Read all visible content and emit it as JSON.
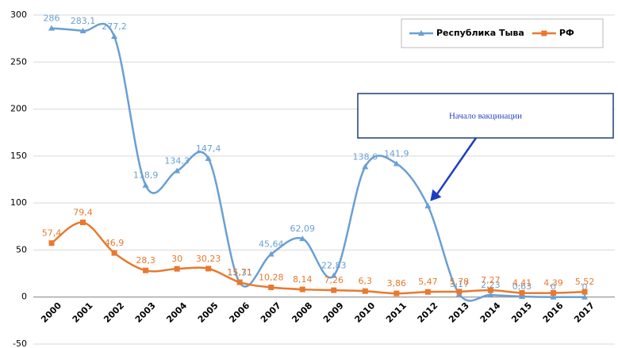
{
  "chart_data": {
    "type": "line",
    "categories": [
      "2000",
      "2001",
      "2002",
      "2003",
      "2004",
      "2005",
      "2006",
      "2007",
      "2008",
      "2009",
      "2010",
      "2011",
      "2012",
      "2013",
      "2014",
      "2015",
      "2016",
      "2017"
    ],
    "series": [
      {
        "name": "Республика Тыва",
        "color": "#6a9fd4",
        "marker": "triangle",
        "values": [
          286,
          283.1,
          277.2,
          118.9,
          134.3,
          147.4,
          15.31,
          45.64,
          62.09,
          22.83,
          138.6,
          141.9,
          97,
          3.17,
          2.23,
          0.63,
          0,
          0
        ],
        "value_labels": [
          "286",
          "283,1",
          "277,2",
          "118,9",
          "134,3",
          "147,4",
          "15,31",
          "45,64",
          "62,09",
          "22,83",
          "138,6",
          "141,9",
          null,
          "3,17",
          "2,23",
          "0,63",
          "0",
          "0"
        ]
      },
      {
        "name": "РФ",
        "color": "#e8792f",
        "marker": "square",
        "values": [
          57.4,
          79.4,
          46.9,
          28.3,
          30,
          30.23,
          15.71,
          10.28,
          8.14,
          7.26,
          6.3,
          3.86,
          5.47,
          5.78,
          7.27,
          4.41,
          4.39,
          5.52
        ],
        "value_labels": [
          "57,4",
          "79,4",
          "46,9",
          "28,3",
          "30",
          "30,23",
          "15,71",
          "10,28",
          "8,14",
          "7,26",
          "6,3",
          "3,86",
          "5,47",
          "5,78",
          "7,27",
          "4,41",
          "4,39",
          "5,52"
        ]
      }
    ],
    "ylim": [
      -50,
      300
    ],
    "yticks": [
      -50,
      0,
      50,
      100,
      150,
      200,
      250,
      300
    ],
    "grid": true,
    "legend": "top-right",
    "annotation": {
      "text": "Начало вакцинации",
      "category": "2012"
    }
  }
}
